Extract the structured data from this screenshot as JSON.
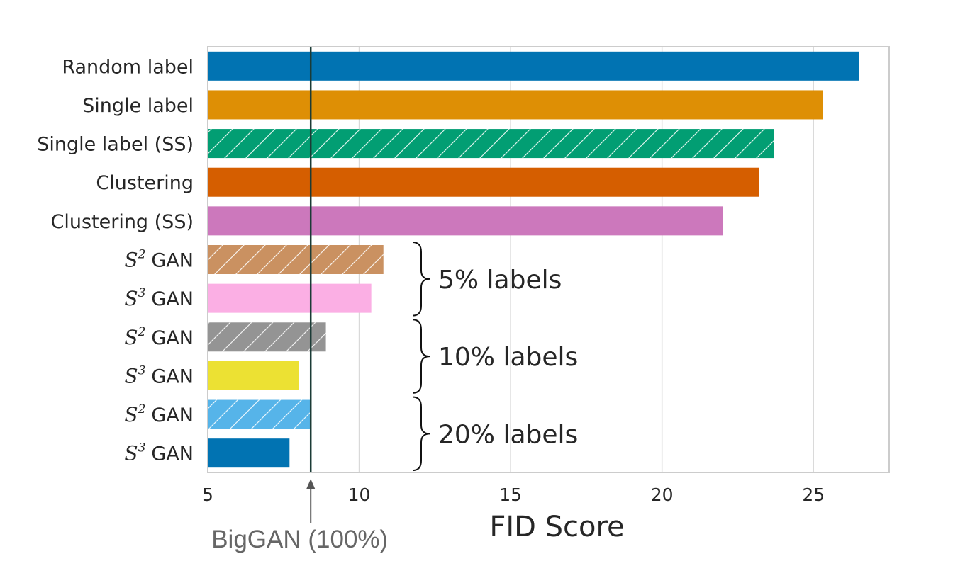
{
  "chart_data": {
    "type": "bar",
    "orientation": "horizontal",
    "title": "",
    "xlabel": "FID Score",
    "ylabel": "",
    "xlim": [
      5,
      27.5
    ],
    "xticks": [
      5,
      10,
      15,
      20,
      25
    ],
    "grid": true,
    "bars": [
      {
        "label": "Random label",
        "value": 26.5,
        "color": "#0173b2",
        "hatch": false
      },
      {
        "label": "Single label",
        "value": 25.3,
        "color": "#de8f05",
        "hatch": false
      },
      {
        "label": "Single label (SS)",
        "value": 23.7,
        "color": "#029e73",
        "hatch": true
      },
      {
        "label": "Clustering",
        "value": 23.2,
        "color": "#d55e00",
        "hatch": false
      },
      {
        "label": "Clustering (SS)",
        "value": 22.0,
        "color": "#cc78bc",
        "hatch": false
      },
      {
        "label_math": "S",
        "label_sup": "2",
        "label_text": "GAN",
        "value": 10.8,
        "color": "#ca9161",
        "hatch": true
      },
      {
        "label_math": "S",
        "label_sup": "3",
        "label_text": "GAN",
        "value": 10.4,
        "color": "#fbafe4",
        "hatch": false
      },
      {
        "label_math": "S",
        "label_sup": "2",
        "label_text": "GAN",
        "value": 8.9,
        "color": "#949494",
        "hatch": true
      },
      {
        "label_math": "S",
        "label_sup": "3",
        "label_text": "GAN",
        "value": 8.0,
        "color": "#ece133",
        "hatch": false
      },
      {
        "label_math": "S",
        "label_sup": "2",
        "label_text": "GAN",
        "value": 8.4,
        "color": "#56b4e9",
        "hatch": true
      },
      {
        "label_math": "S",
        "label_sup": "3",
        "label_text": "GAN",
        "value": 7.7,
        "color": "#0173b2",
        "hatch": false
      }
    ],
    "groups": [
      {
        "label": "5% labels",
        "from": 5,
        "to": 6
      },
      {
        "label": "10% labels",
        "from": 7,
        "to": 8
      },
      {
        "label": "20% labels",
        "from": 9,
        "to": 10
      }
    ],
    "reference_line": {
      "value": 8.4,
      "label": "BigGAN (100%)",
      "color": "#1b3b36"
    }
  }
}
